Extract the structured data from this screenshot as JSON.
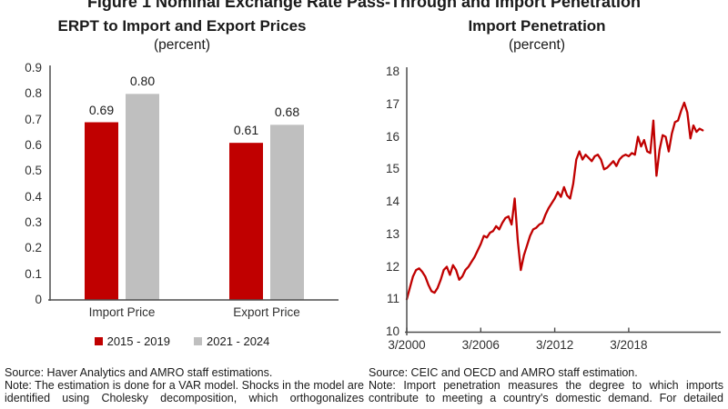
{
  "figure_title": "Figure 1 Nominal Exchange Rate Pass-Through and Import Penetration",
  "colors": {
    "series_red": "#C00000",
    "series_gray": "#BFBFBF",
    "axis": "#4D4D4D",
    "text": "#262626"
  },
  "left_panel": {
    "title": "ERPT to Import and Export Prices",
    "subtitle": "(percent)",
    "source": "Source: Haver Analytics and AMRO staff estimations.",
    "note": "Note: The estimation is done for a VAR model. Shocks in the model are identified using Cholesky decomposition, which orthogonalizes"
  },
  "right_panel": {
    "title": "Import Penetration",
    "subtitle": "(percent)",
    "source": "Source: CEIC and OECD and AMRO staff estimation.",
    "note": "Note: Import penetration measures the degree to which imports contribute to meeting a country's domestic demand. For detailed"
  },
  "chart_data": [
    {
      "type": "bar",
      "title": "ERPT to Import and Export Prices",
      "units": "percent",
      "categories": [
        "Import Price",
        "Export Price"
      ],
      "series": [
        {
          "name": "2015 - 2019",
          "color": "#C00000",
          "values": [
            0.69,
            0.61
          ]
        },
        {
          "name": "2021 - 2024",
          "color": "#BFBFBF",
          "values": [
            0.8,
            0.68
          ]
        }
      ],
      "data_labels": [
        "0.69",
        "0.80",
        "0.61",
        "0.68"
      ],
      "ylim": [
        0,
        0.9
      ],
      "ytick_labels": [
        "0.9",
        "0.8",
        "0.7",
        "0.6",
        "0.5",
        "0.4",
        "0.3",
        "0.2",
        "0.1",
        "0"
      ],
      "grid": false,
      "legend_position": "bottom"
    },
    {
      "type": "line",
      "title": "Import Penetration",
      "units": "percent",
      "color": "#C00000",
      "x_start": "3/2000",
      "frequency": "quarterly",
      "xtick_labels": [
        "3/2000",
        "3/2006",
        "3/2012",
        "3/2018"
      ],
      "ylim": [
        10,
        18
      ],
      "ytick_labels": [
        "18",
        "17",
        "16",
        "15",
        "14",
        "13",
        "12",
        "11",
        "10"
      ],
      "grid": false,
      "values": [
        11.0,
        11.35,
        11.7,
        11.9,
        11.95,
        11.85,
        11.7,
        11.45,
        11.25,
        11.2,
        11.35,
        11.6,
        11.9,
        12.0,
        11.75,
        12.05,
        11.9,
        11.6,
        11.7,
        11.9,
        12.0,
        12.15,
        12.3,
        12.5,
        12.7,
        12.95,
        12.9,
        13.05,
        13.1,
        13.25,
        13.15,
        13.35,
        13.5,
        13.55,
        13.3,
        14.1,
        12.8,
        11.9,
        12.35,
        12.65,
        12.95,
        13.15,
        13.2,
        13.3,
        13.35,
        13.6,
        13.8,
        13.95,
        14.1,
        14.3,
        14.15,
        14.45,
        14.2,
        14.1,
        14.55,
        15.3,
        15.55,
        15.3,
        15.45,
        15.35,
        15.25,
        15.4,
        15.45,
        15.3,
        15.0,
        15.05,
        15.15,
        15.25,
        15.1,
        15.3,
        15.4,
        15.45,
        15.4,
        15.5,
        15.45,
        16.0,
        15.7,
        15.9,
        15.55,
        15.5,
        16.5,
        14.8,
        15.6,
        16.05,
        16.0,
        15.55,
        16.1,
        16.45,
        16.5,
        16.8,
        17.05,
        16.75,
        15.95,
        16.35,
        16.15,
        16.25,
        16.2
      ]
    }
  ]
}
